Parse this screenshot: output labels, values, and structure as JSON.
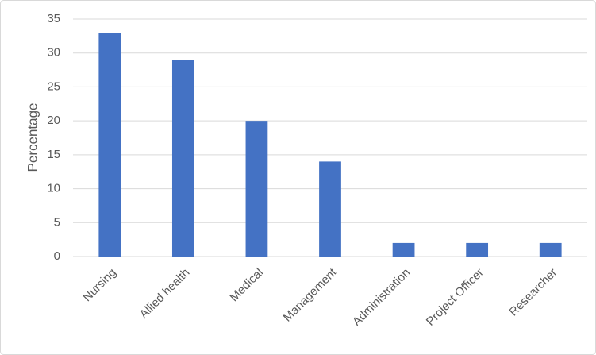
{
  "chart_data": {
    "type": "bar",
    "y_label": "Percentage",
    "categories": [
      "Nursing",
      "Allied health",
      "Medical",
      "Management",
      "Administration",
      "Project Officer",
      "Researcher"
    ],
    "values": [
      33,
      29,
      20,
      14,
      2,
      2,
      2
    ],
    "color": "#4472c4",
    "ylim": [
      0,
      35
    ],
    "yticks": [
      0,
      5,
      10,
      15,
      20,
      25,
      30,
      35
    ],
    "grid": true
  }
}
